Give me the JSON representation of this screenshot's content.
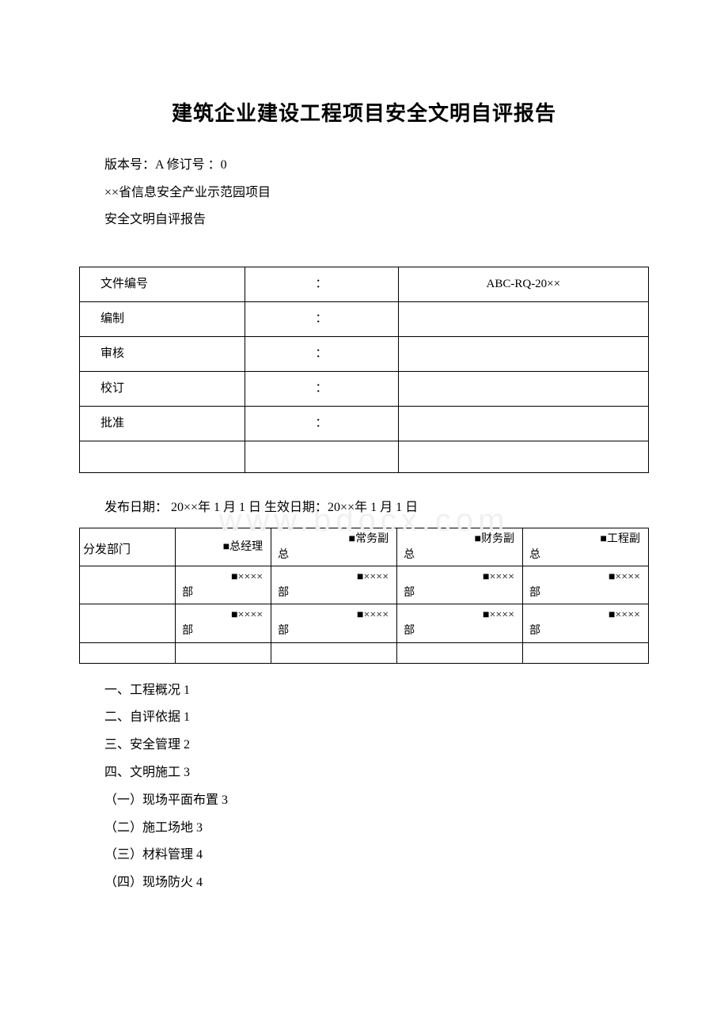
{
  "title": "建筑企业建设工程项目安全文明自评报告",
  "meta": {
    "version_line": "版本号：A 修订号 ：0",
    "project_line": "××省信息安全产业示范园项目",
    "report_line": "安全文明自评报告"
  },
  "info_table": {
    "rows": [
      {
        "label": "文件编号",
        "sep": "：",
        "value": "ABC-RQ-20××"
      },
      {
        "label": "编制",
        "sep": "：",
        "value": ""
      },
      {
        "label": "审核",
        "sep": "：",
        "value": ""
      },
      {
        "label": "校订",
        "sep": "：",
        "value": ""
      },
      {
        "label": "批准",
        "sep": "：",
        "value": ""
      }
    ]
  },
  "dates": {
    "line": "发布日期： 20××年 1 月 1 日  生效日期：20××年 1 月 1 日"
  },
  "watermark": "www.bdocx.com",
  "dist": {
    "header_label": "分发部门",
    "row1": [
      {
        "top": "■总经理",
        "bot": ""
      },
      {
        "top": "■常务副",
        "bot": "总"
      },
      {
        "top": "■财务副",
        "bot": "总"
      },
      {
        "top": "■工程副",
        "bot": "总"
      }
    ],
    "row2": [
      {
        "top": "■××××",
        "bot": "部"
      },
      {
        "top": "■××××",
        "bot": "部"
      },
      {
        "top": "■××××",
        "bot": "部"
      },
      {
        "top": "■××××",
        "bot": "部"
      }
    ],
    "row3": [
      {
        "top": "■××××",
        "bot": "部"
      },
      {
        "top": "■××××",
        "bot": "部"
      },
      {
        "top": "■××××",
        "bot": "部"
      },
      {
        "top": "■××××",
        "bot": "部"
      }
    ]
  },
  "toc": [
    "一、工程概况 1",
    "二、自评依据 1",
    "三、安全管理 2",
    "四、文明施工 3",
    "（一）现场平面布置 3",
    "（二）施工场地 3",
    "（三）材料管理 4",
    "（四）现场防火 4"
  ]
}
